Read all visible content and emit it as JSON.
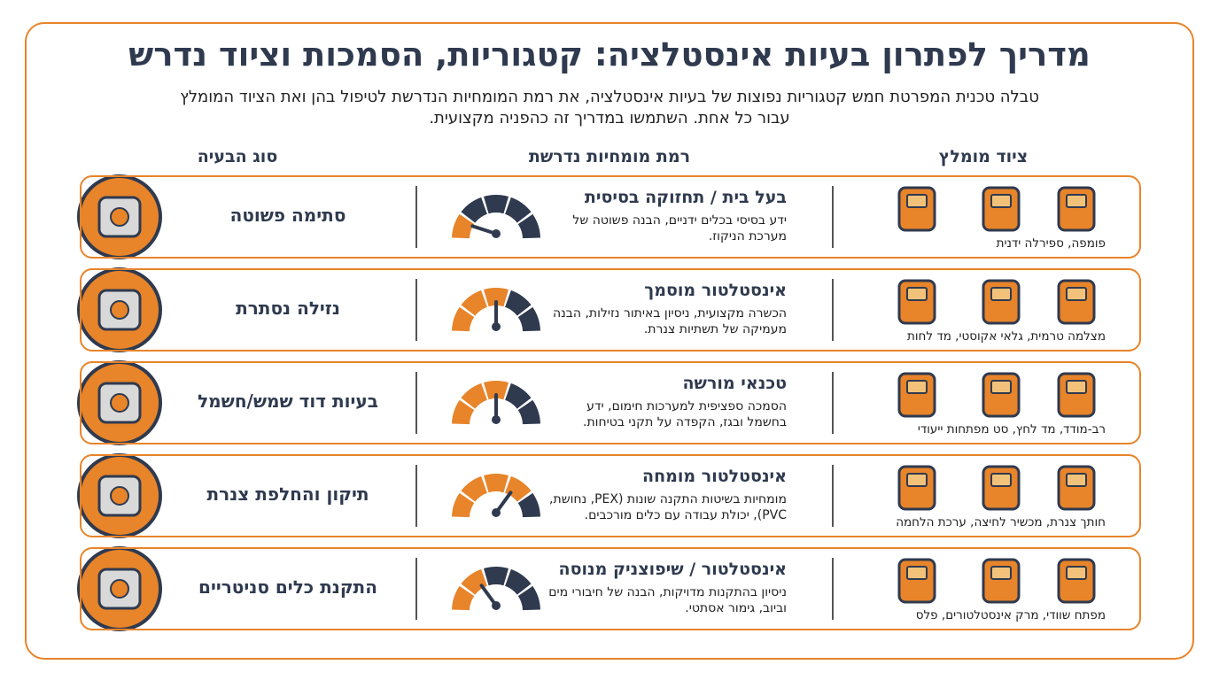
{
  "header": {
    "title": "מדריך לפתרון בעיות אינסטלציה: קטגוריות, הסמכות וציוד נדרש",
    "subtitle": "טבלה טכנית המפרטת חמש קטגוריות נפוצות של בעיות אינסטלציה, את רמת המומחיות הנדרשת לטיפול בהן ואת הציוד המומלץ עבור כל אחת. השתמשו במדריך זה כהפניה מקצועית."
  },
  "table": {
    "columns": [
      "ציוד מומלץ",
      "רמת מומחיות נדרשת",
      "סוג הבעיה"
    ],
    "rows": [
      {
        "problem": "סתימה פשוטה",
        "level": "בעל בית / תחזוקה בסיסית",
        "description": "ידע בסיסי בכלים ידניים, הבנה פשוטה של מערכת הניקוז.",
        "equipment": "פומפה, ספירלה ידנית"
      },
      {
        "problem": "נזילה נסתרת",
        "level": "אינסטלטור מוסמך",
        "description": "הכשרה מקצועית, ניסיון באיתור נזילות, הבנה מעמיקה של תשתיות צנרת.",
        "equipment": "מצלמה טרמית, גלאי אקוסטי, מד לחות"
      },
      {
        "problem": "בעיות דוד שמש/חשמל",
        "level": "טכנאי מורשה",
        "description": "הסמכה ספציפית למערכות חימום, ידע בחשמל ובגז, הקפדה על תקני בטיחות.",
        "equipment": "רב-מודד, מד לחץ, סט מפתחות ייעודי"
      },
      {
        "problem": "תיקון והחלפת צנרת",
        "level": "אינסטלטור מומחה",
        "description": "מומחיות בשיטות התקנה שונות (PEX, נחושת, PVC), יכולת עבודה עם כלים מורכבים.",
        "equipment": "חותך צנרת, מכשיר לחיצה, ערכת הלחמה"
      },
      {
        "problem": "התקנת כלים סניטריים",
        "level": "אינסטלטור / שיפוצניק מנוסה",
        "description": "ניסיון בהתקנות מדויקות, הבנה של חיבורי מים וביוב, גימור אסתטי.",
        "equipment": "מפתח שוודי, מרק אינסטלטורים, פלס"
      }
    ]
  }
}
